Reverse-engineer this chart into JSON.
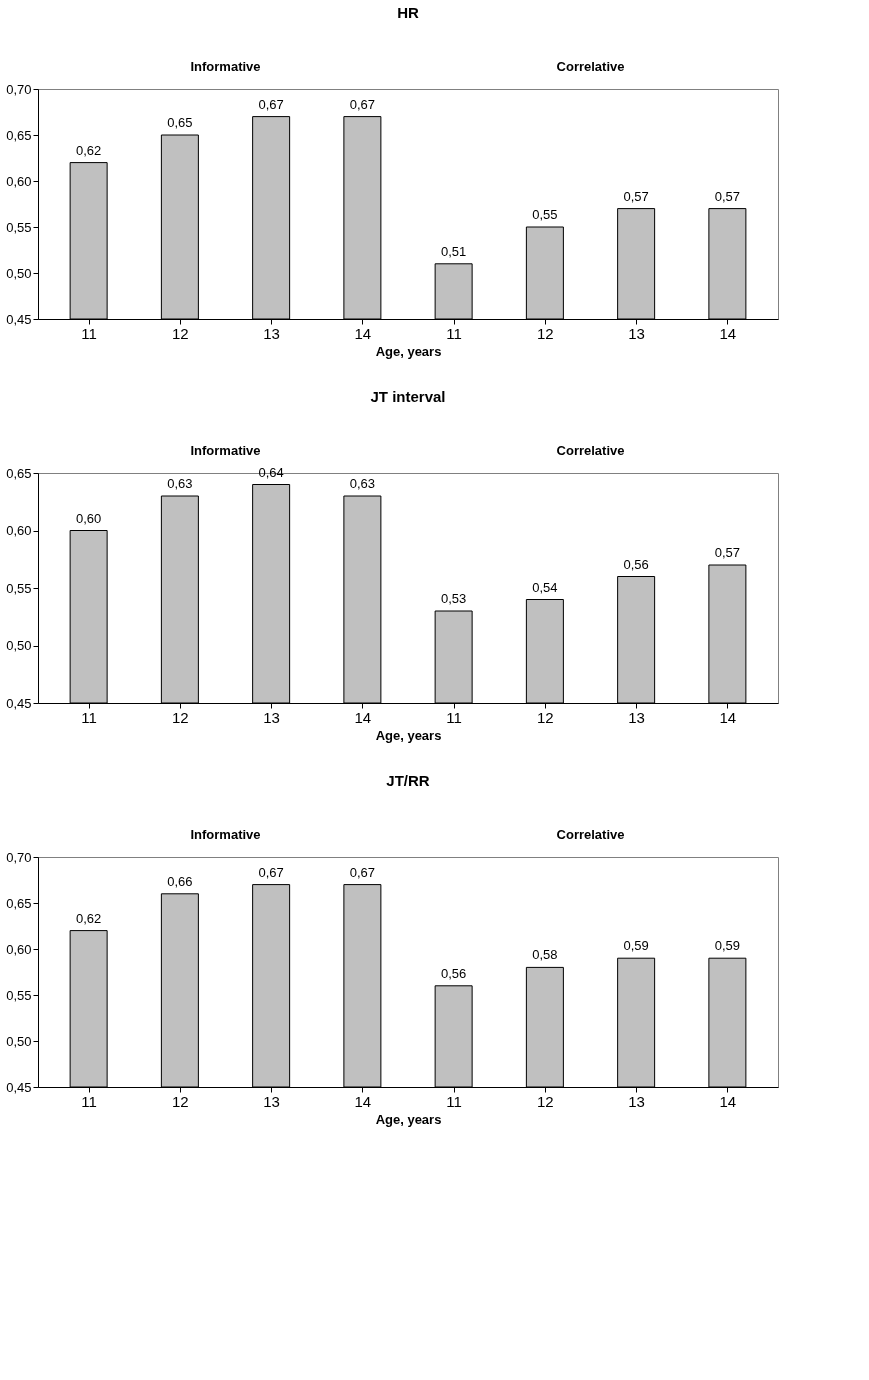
{
  "chart_data": [
    {
      "type": "bar",
      "title": "HR",
      "xlabel": "Age, years",
      "annotations": [
        "Informative",
        "Correlative"
      ],
      "categories": [
        "11",
        "12",
        "13",
        "14",
        "11",
        "12",
        "13",
        "14"
      ],
      "values": [
        0.62,
        0.65,
        0.67,
        0.67,
        0.51,
        0.55,
        0.57,
        0.57
      ],
      "value_labels": [
        "0,62",
        "0,65",
        "0,67",
        "0,67",
        "0,51",
        "0,55",
        "0,57",
        "0,57"
      ],
      "color": "#c0c0c0",
      "ylim": [
        0.45,
        0.7
      ],
      "yticks": [
        {
          "value": 0.45,
          "label": "0,45"
        },
        {
          "value": 0.5,
          "label": "0,50"
        },
        {
          "value": 0.55,
          "label": "0,55"
        },
        {
          "value": 0.6,
          "label": "0,60"
        },
        {
          "value": 0.65,
          "label": "0,65"
        },
        {
          "value": 0.7,
          "label": "0,70"
        }
      ],
      "grid": false
    },
    {
      "type": "bar",
      "title": "JT interval",
      "xlabel": "Age, years",
      "annotations": [
        "Informative",
        "Correlative"
      ],
      "categories": [
        "11",
        "12",
        "13",
        "14",
        "11",
        "12",
        "13",
        "14"
      ],
      "values": [
        0.6,
        0.63,
        0.64,
        0.63,
        0.53,
        0.54,
        0.56,
        0.57
      ],
      "value_labels": [
        "0,60",
        "0,63",
        "0,64",
        "0,63",
        "0,53",
        "0,54",
        "0,56",
        "0,57"
      ],
      "color": "#c0c0c0",
      "ylim": [
        0.45,
        0.65
      ],
      "yticks": [
        {
          "value": 0.45,
          "label": "0,45"
        },
        {
          "value": 0.5,
          "label": "0,50"
        },
        {
          "value": 0.55,
          "label": "0,55"
        },
        {
          "value": 0.6,
          "label": "0,60"
        },
        {
          "value": 0.65,
          "label": "0,65"
        }
      ],
      "grid": false
    },
    {
      "type": "bar",
      "title": "JT/RR",
      "xlabel": "Age, years",
      "annotations": [
        "Informative",
        "Correlative"
      ],
      "categories": [
        "11",
        "12",
        "13",
        "14",
        "11",
        "12",
        "13",
        "14"
      ],
      "values": [
        0.62,
        0.66,
        0.67,
        0.67,
        0.56,
        0.58,
        0.59,
        0.59
      ],
      "value_labels": [
        "0,62",
        "0,66",
        "0,67",
        "0,67",
        "0,56",
        "0,58",
        "0,59",
        "0,59"
      ],
      "color": "#c0c0c0",
      "ylim": [
        0.45,
        0.7
      ],
      "yticks": [
        {
          "value": 0.45,
          "label": "0,45"
        },
        {
          "value": 0.5,
          "label": "0,50"
        },
        {
          "value": 0.55,
          "label": "0,55"
        },
        {
          "value": 0.6,
          "label": "0,60"
        },
        {
          "value": 0.65,
          "label": "0,65"
        },
        {
          "value": 0.7,
          "label": "0,70"
        }
      ],
      "grid": false
    }
  ]
}
